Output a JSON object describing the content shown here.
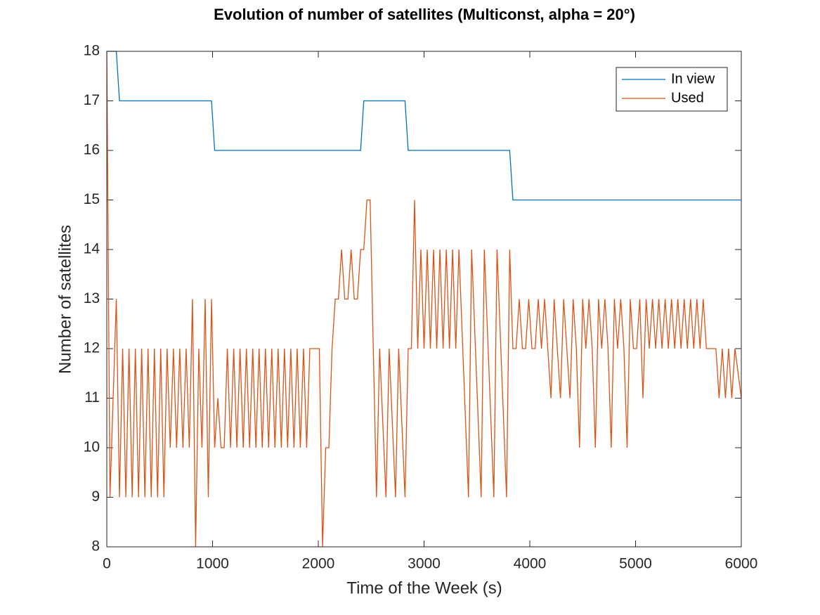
{
  "chart_data": {
    "type": "line",
    "title": "Evolution of number of satellites (Multiconst, alpha = 20°)",
    "x_label": "Time of the Week (s)",
    "y_label": "Number of satellites",
    "xlim": [
      0,
      6000
    ],
    "ylim": [
      8,
      18
    ],
    "xticks": [
      0,
      1000,
      2000,
      3000,
      4000,
      5000,
      6000
    ],
    "yticks": [
      8,
      9,
      10,
      11,
      12,
      13,
      14,
      15,
      16,
      17,
      18
    ],
    "legend": "top-right",
    "series": [
      {
        "name": "In view",
        "color": "#0072bd",
        "x": [
          0,
          90,
          120,
          990,
          1020,
          2400,
          2430,
          2820,
          2850,
          3810,
          3840,
          6000
        ],
        "values": [
          18,
          18,
          17,
          17,
          16,
          16,
          17,
          17,
          16,
          16,
          15,
          15
        ]
      },
      {
        "name": "Used",
        "color": "#d95319",
        "x": [
          0,
          30,
          90,
          120,
          150,
          180,
          210,
          240,
          270,
          300,
          330,
          360,
          390,
          420,
          450,
          480,
          510,
          540,
          570,
          600,
          630,
          660,
          690,
          720,
          750,
          780,
          810,
          840,
          870,
          900,
          930,
          960,
          990,
          1020,
          1050,
          1080,
          1110,
          1140,
          1170,
          1200,
          1230,
          1260,
          1290,
          1320,
          1350,
          1380,
          1410,
          1440,
          1470,
          1500,
          1530,
          1560,
          1590,
          1620,
          1650,
          1680,
          1710,
          1740,
          1770,
          1800,
          1830,
          1860,
          1890,
          1920,
          1950,
          2010,
          2040,
          2070,
          2100,
          2130,
          2160,
          2190,
          2220,
          2250,
          2280,
          2310,
          2340,
          2370,
          2400,
          2430,
          2460,
          2490,
          2550,
          2580,
          2640,
          2670,
          2730,
          2760,
          2820,
          2850,
          2880,
          2910,
          2940,
          2970,
          3000,
          3030,
          3060,
          3090,
          3120,
          3150,
          3180,
          3210,
          3240,
          3270,
          3300,
          3330,
          3420,
          3450,
          3540,
          3570,
          3660,
          3690,
          3780,
          3810,
          3840,
          3870,
          3900,
          3930,
          3960,
          3990,
          4020,
          4050,
          4080,
          4110,
          4140,
          4170,
          4200,
          4230,
          4260,
          4290,
          4320,
          4350,
          4380,
          4410,
          4440,
          4470,
          4500,
          4530,
          4560,
          4590,
          4620,
          4650,
          4680,
          4710,
          4740,
          4770,
          4800,
          4830,
          4860,
          4890,
          4920,
          4950,
          4980,
          5010,
          5040,
          5070,
          5100,
          5130,
          5160,
          5190,
          5220,
          5250,
          5280,
          5310,
          5340,
          5370,
          5400,
          5430,
          5460,
          5490,
          5520,
          5550,
          5580,
          5610,
          5640,
          5670,
          5760,
          5790,
          5820,
          5850,
          5880,
          5910,
          5940,
          6000
        ],
        "values": [
          18,
          9,
          13,
          9,
          12,
          9,
          12,
          9,
          12,
          9,
          12,
          9,
          12,
          9,
          12,
          9,
          12,
          9,
          12,
          10,
          12,
          10,
          12,
          10,
          12,
          10,
          13,
          8,
          12,
          10,
          13,
          9,
          13,
          10,
          11,
          10,
          10,
          12,
          10,
          12,
          10,
          12,
          10,
          12,
          10,
          12,
          10,
          12,
          10,
          12,
          10,
          12,
          10,
          12,
          10,
          12,
          10,
          12,
          10,
          12,
          10,
          12,
          10,
          12,
          12,
          12,
          8,
          10,
          10,
          12,
          13,
          13,
          14,
          13,
          13,
          14,
          13,
          13,
          14,
          14,
          15,
          15,
          9,
          12,
          9,
          12,
          9,
          12,
          9,
          12,
          12,
          15,
          12,
          14,
          12,
          14,
          12,
          14,
          12,
          14,
          12,
          14,
          12,
          14,
          12,
          14,
          9,
          14,
          9,
          14,
          9,
          14,
          9,
          14,
          12,
          12,
          13,
          12,
          12,
          13,
          12,
          12,
          13,
          12,
          13,
          12,
          11,
          13,
          12,
          11,
          13,
          12,
          11,
          13,
          12,
          10,
          13,
          12,
          13,
          12,
          10,
          13,
          12,
          13,
          12,
          10,
          13,
          12,
          13,
          12,
          10,
          13,
          12,
          12,
          13,
          11,
          13,
          12,
          13,
          12,
          13,
          12,
          13,
          12,
          13,
          12,
          13,
          12,
          13,
          12,
          13,
          12,
          13,
          12,
          13,
          12,
          12,
          11,
          12,
          11,
          12,
          11,
          12,
          11
        ]
      }
    ]
  }
}
